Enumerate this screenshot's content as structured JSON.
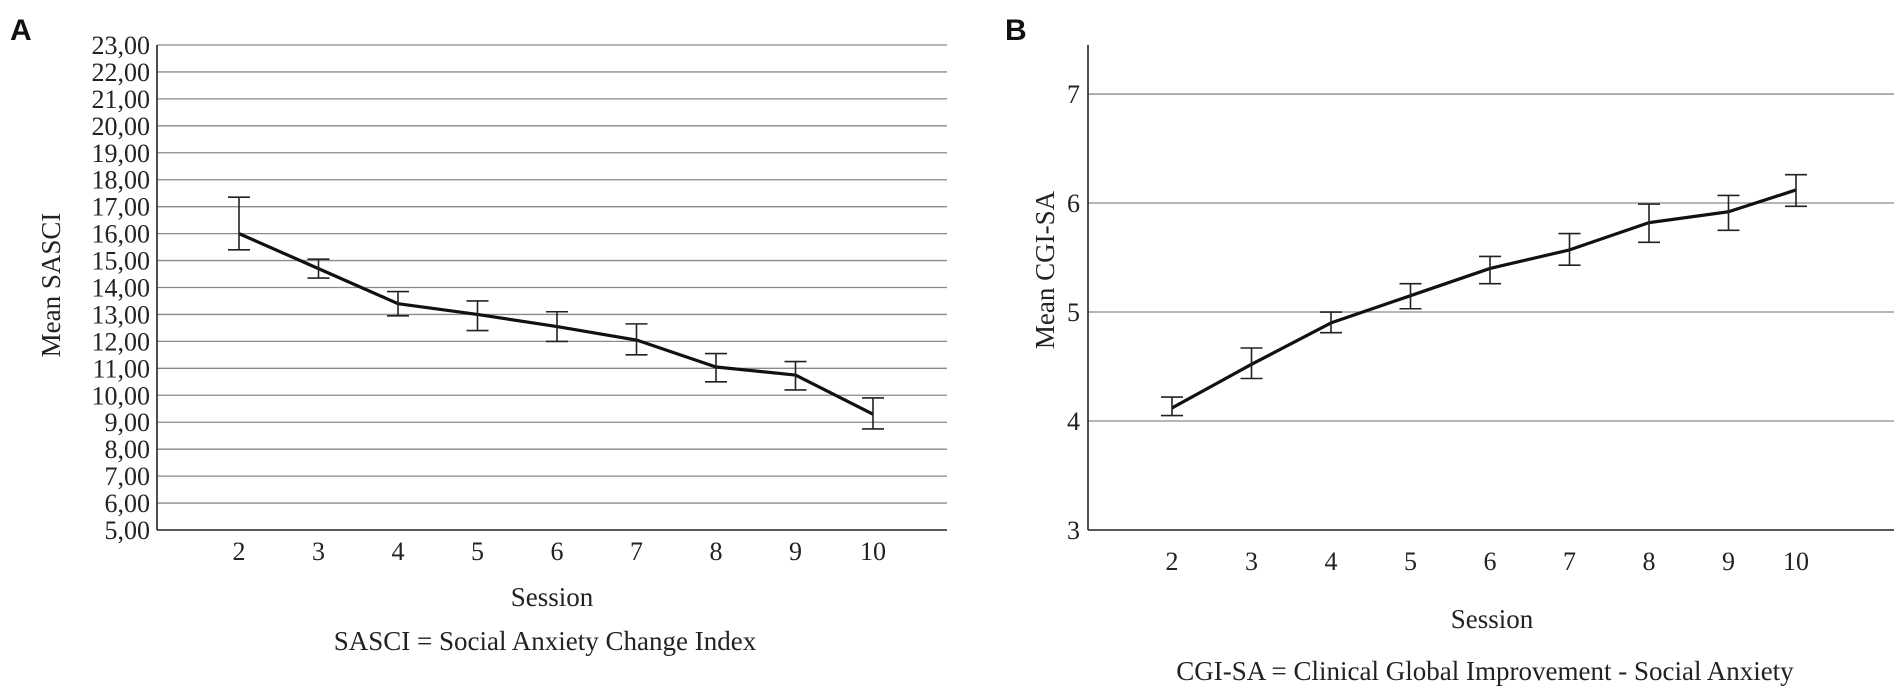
{
  "chart_data": [
    {
      "panel": "A",
      "type": "line",
      "title": "",
      "xlabel": "Session",
      "ylabel": "Mean SASCI",
      "footnote": "SASCI = Social Anxiety Change Index",
      "categories": [
        "2",
        "3",
        "4",
        "5",
        "6",
        "7",
        "8",
        "9",
        "10"
      ],
      "ylim": [
        5,
        23
      ],
      "yticks": [
        5,
        6,
        7,
        8,
        9,
        10,
        11,
        12,
        13,
        14,
        15,
        16,
        17,
        18,
        19,
        20,
        21,
        22,
        23
      ],
      "ytick_labels": [
        "5,00",
        "6,00",
        "7,00",
        "8,00",
        "9,00",
        "10,00",
        "11,00",
        "12,00",
        "13,00",
        "14,00",
        "15,00",
        "16,00",
        "17,00",
        "18,00",
        "19,00",
        "20,00",
        "21,00",
        "22,00",
        "23,00"
      ],
      "grid": true,
      "series": [
        {
          "name": "Mean SASCI",
          "values": [
            16.0,
            14.7,
            13.4,
            13.0,
            12.55,
            12.05,
            11.05,
            10.75,
            9.3
          ],
          "err_low": [
            15.4,
            14.35,
            12.95,
            12.4,
            12.0,
            11.5,
            10.5,
            10.2,
            8.75
          ],
          "err_high": [
            17.35,
            15.05,
            13.85,
            13.5,
            13.1,
            12.65,
            11.55,
            11.25,
            9.9
          ]
        }
      ]
    },
    {
      "panel": "B",
      "type": "line",
      "title": "",
      "xlabel": "Session",
      "ylabel": "Mean CGI-SA",
      "footnote": "CGI-SA = Clinical Global Improvement - Social Anxiety",
      "categories": [
        "2",
        "3",
        "4",
        "5",
        "6",
        "7",
        "8",
        "9",
        "10"
      ],
      "ylim": [
        3,
        7.45
      ],
      "yticks": [
        3,
        4,
        5,
        6,
        7
      ],
      "ytick_labels": [
        "3",
        "4",
        "5",
        "6",
        "7"
      ],
      "grid": true,
      "series": [
        {
          "name": "Mean CGI-SA",
          "values": [
            4.12,
            4.52,
            4.9,
            5.15,
            5.4,
            5.57,
            5.82,
            5.92,
            6.12
          ],
          "err_low": [
            4.05,
            4.39,
            4.81,
            5.03,
            5.26,
            5.43,
            5.64,
            5.75,
            5.97
          ],
          "err_high": [
            4.22,
            4.67,
            5.0,
            5.26,
            5.51,
            5.72,
            5.99,
            6.07,
            6.26
          ]
        }
      ]
    }
  ]
}
